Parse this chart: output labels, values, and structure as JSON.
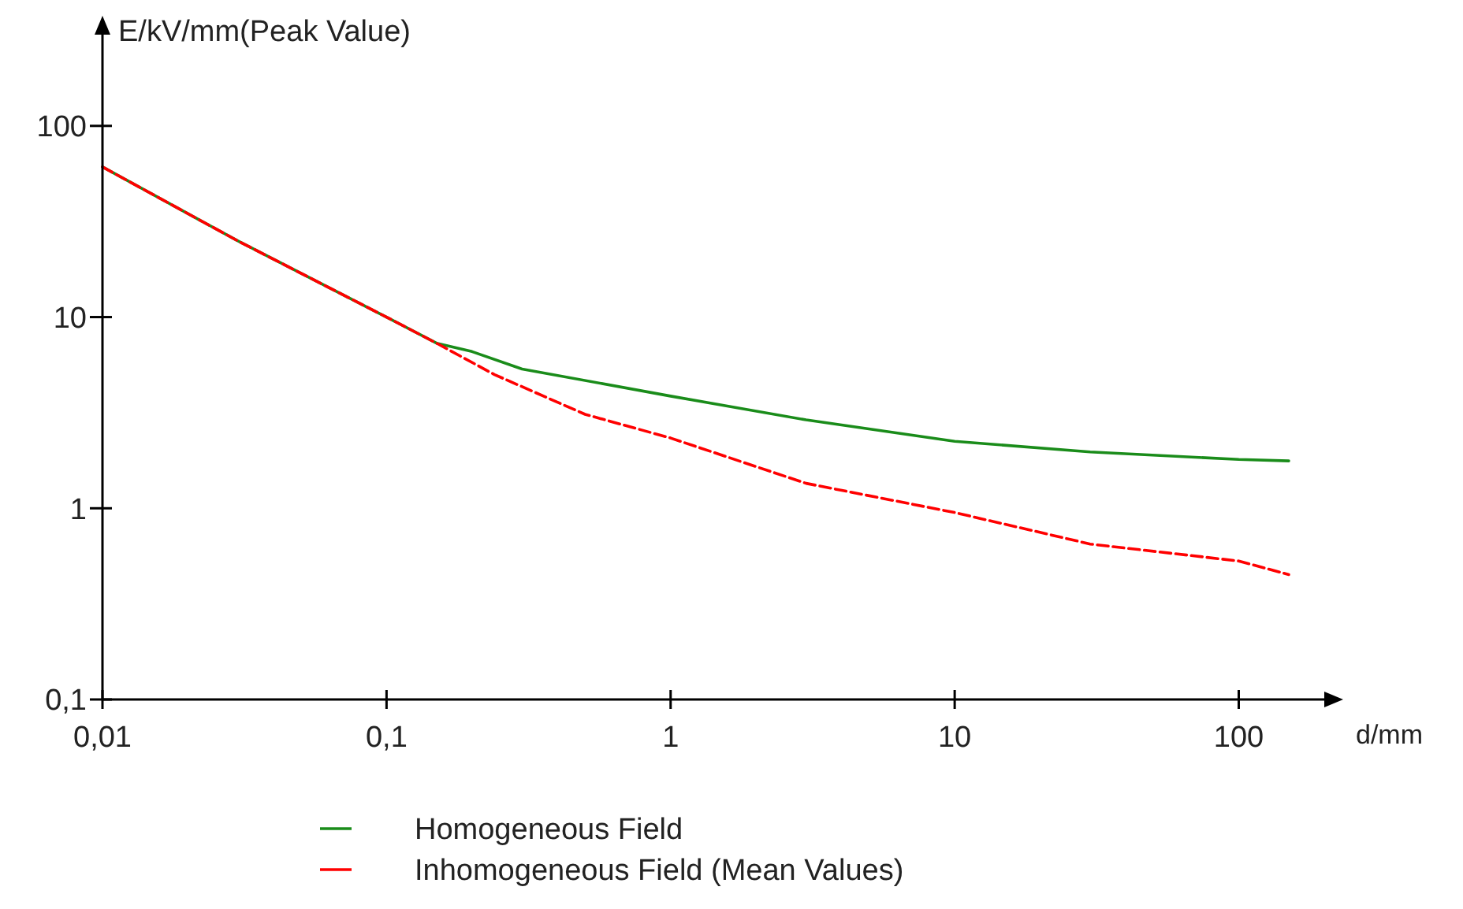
{
  "chart_data": {
    "type": "line",
    "xlabel": "d/mm",
    "ylabel": "E/kV/mm(Peak Value)",
    "log": "xy",
    "xlim": [
      0.01,
      200
    ],
    "ylim": [
      0.1,
      300
    ],
    "xticks": [
      {
        "value": 0.01,
        "label": "0,01"
      },
      {
        "value": 0.1,
        "label": "0,1"
      },
      1,
      10,
      100
    ],
    "yticks": [
      {
        "value": 0.1,
        "label": "0,1"
      },
      1,
      10,
      100
    ],
    "grid": false,
    "legend": "bottom",
    "marker": "none",
    "series": [
      {
        "name": "Homogeneous Field",
        "color": "#1a8c1a",
        "line_style": "solid",
        "x": [
          0.01,
          0.03,
          0.1,
          0.15,
          0.2,
          0.3,
          1,
          3,
          10,
          30,
          100,
          150
        ],
        "values": [
          61,
          25,
          10,
          7.3,
          6.6,
          5.35,
          3.86,
          2.9,
          2.24,
          1.97,
          1.8,
          1.77
        ]
      },
      {
        "name": "Inhomogeneous Field (Mean Values)",
        "color": "#ff0000",
        "line_style": "dashed",
        "x": [
          0.01,
          0.03,
          0.1,
          0.15,
          0.24,
          0.5,
          1,
          3,
          10,
          30,
          100,
          150
        ],
        "values": [
          61,
          25,
          10,
          7.3,
          5.0,
          3.1,
          2.33,
          1.35,
          0.95,
          0.65,
          0.53,
          0.45
        ]
      }
    ]
  }
}
